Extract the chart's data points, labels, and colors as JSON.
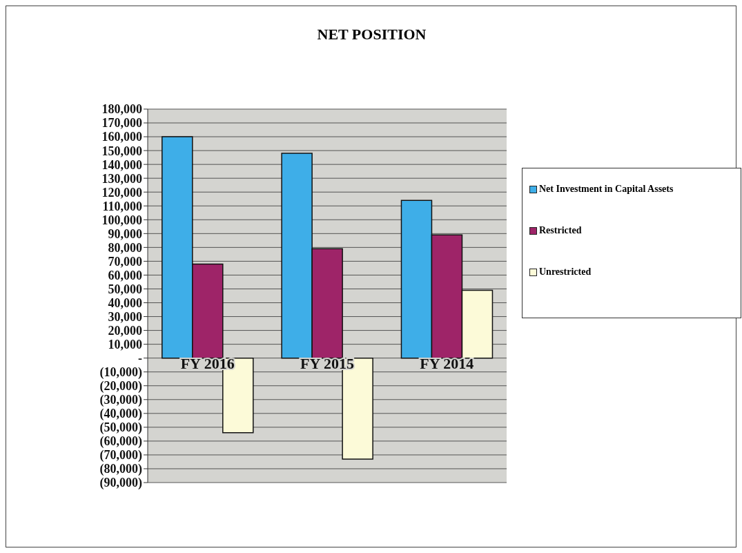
{
  "chart_data": {
    "type": "bar",
    "title": "NET POSITION",
    "categories": [
      "FY 2016",
      "FY 2015",
      "FY 2014"
    ],
    "series": [
      {
        "name": "Net Investment in Capital Assets",
        "color": "#3eaee8",
        "values": [
          160000,
          148000,
          114000
        ]
      },
      {
        "name": "Restricted",
        "color": "#9e2468",
        "values": [
          68000,
          79000,
          89000
        ]
      },
      {
        "name": "Unrestricted",
        "color": "#fcfad8",
        "values": [
          -54000,
          -73000,
          49000
        ]
      }
    ],
    "ylim": [
      -90000,
      180000
    ],
    "yticks": [
      {
        "value": -90000,
        "label": "(90,000)"
      },
      {
        "value": -80000,
        "label": "(80,000)"
      },
      {
        "value": -70000,
        "label": "(70,000)"
      },
      {
        "value": -60000,
        "label": "(60,000)"
      },
      {
        "value": -50000,
        "label": "(50,000)"
      },
      {
        "value": -40000,
        "label": "(40,000)"
      },
      {
        "value": -30000,
        "label": "(30,000)"
      },
      {
        "value": -20000,
        "label": "(20,000)"
      },
      {
        "value": -10000,
        "label": "(10,000)"
      },
      {
        "value": 0,
        "label": "-"
      },
      {
        "value": 10000,
        "label": "10,000"
      },
      {
        "value": 20000,
        "label": "20,000"
      },
      {
        "value": 30000,
        "label": "30,000"
      },
      {
        "value": 40000,
        "label": "40,000"
      },
      {
        "value": 50000,
        "label": "50,000"
      },
      {
        "value": 60000,
        "label": "60,000"
      },
      {
        "value": 70000,
        "label": "70,000"
      },
      {
        "value": 80000,
        "label": "80,000"
      },
      {
        "value": 90000,
        "label": "90,000"
      },
      {
        "value": 100000,
        "label": "100,000"
      },
      {
        "value": 110000,
        "label": "110,000"
      },
      {
        "value": 120000,
        "label": "120,000"
      },
      {
        "value": 130000,
        "label": "130,000"
      },
      {
        "value": 140000,
        "label": "140,000"
      },
      {
        "value": 150000,
        "label": "150,000"
      },
      {
        "value": 160000,
        "label": "160,000"
      },
      {
        "value": 170000,
        "label": "170,000"
      },
      {
        "value": 180000,
        "label": "180,000"
      }
    ],
    "grid": "y",
    "legend": "right"
  }
}
